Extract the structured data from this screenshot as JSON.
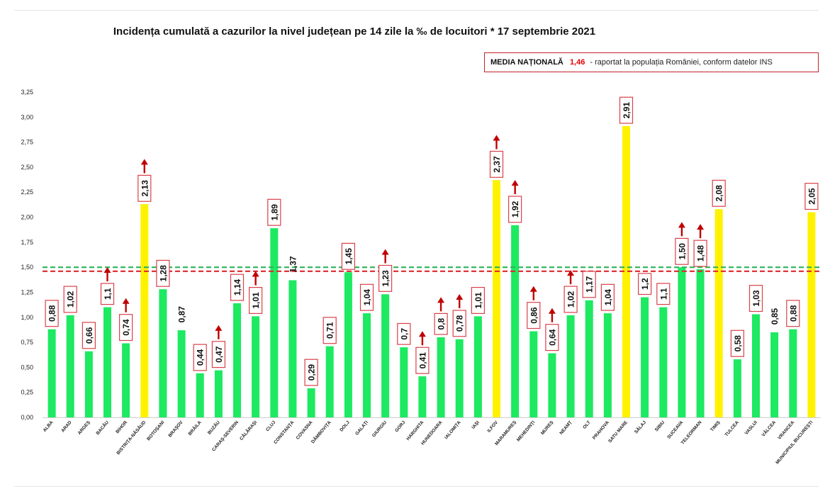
{
  "title": "Incidența cumulată a cazurilor la nivel județean pe 14 zile la ‰ de locuitori * 17 septembrie 2021",
  "media_box": {
    "label": "MEDIA NAȚIONALĂ",
    "value": "1,46",
    "note": "- raportat la populația României, conform datelor INS"
  },
  "colors": {
    "bar_green": "#1de961",
    "bar_yellow": "#fff200",
    "label_border": "#d9414a",
    "arrow": "#c00000",
    "line_red": "#e0282d",
    "line_green": "#2fb35a"
  },
  "chart_data": {
    "type": "bar",
    "categories": [
      "ALBA",
      "ARAD",
      "ARGEȘ",
      "BACĂU",
      "BIHOR",
      "BISTRIȚA-NĂSĂUD",
      "BOTOȘANI",
      "BRAȘOV",
      "BRĂILA",
      "BUZĂU",
      "CARAȘ-SEVERIN",
      "CĂLĂRAȘI",
      "CLUJ",
      "CONSTANȚA",
      "COVASNA",
      "DÂMBOVIȚA",
      "DOLJ",
      "GALAȚI",
      "GIURGIU",
      "GORJ",
      "HARGHITA",
      "HUNEDOARA",
      "IALOMIȚA",
      "IAȘI",
      "ILFOV",
      "MARAMUREȘ",
      "MEHEDINȚI",
      "MUREȘ",
      "NEAMȚ",
      "OLT",
      "PRAHOVA",
      "SATU MARE",
      "SĂLAJ",
      "SIBIU",
      "SUCEAVA",
      "TELEORMAN",
      "TIMIȘ",
      "TULCEA",
      "VASLUI",
      "VÂLCEA",
      "VRANCEA",
      "MUNICIPIUL BUCUREȘTI"
    ],
    "values": [
      0.88,
      1.02,
      0.66,
      1.1,
      0.74,
      2.13,
      1.28,
      0.87,
      0.44,
      0.47,
      1.14,
      1.01,
      1.89,
      1.37,
      0.29,
      0.71,
      1.45,
      1.04,
      1.23,
      0.7,
      0.41,
      0.8,
      0.78,
      1.01,
      2.37,
      1.92,
      0.86,
      0.64,
      1.02,
      1.17,
      1.04,
      2.91,
      1.2,
      1.1,
      1.5,
      1.48,
      2.08,
      0.58,
      1.03,
      0.85,
      0.88,
      2.05
    ],
    "value_labels": [
      "0,88",
      "1,02",
      "0,66",
      "1,1",
      "0,74",
      "2,13",
      "1,28",
      "0,87",
      "0,44",
      "0,47",
      "1,14",
      "1,01",
      "1,89",
      "1,37",
      "0,29",
      "0,71",
      "1,45",
      "1,04",
      "1,23",
      "0,7",
      "0,41",
      "0,8",
      "0,78",
      "1,01",
      "2,37",
      "1,92",
      "0,86",
      "0,64",
      "1,02",
      "1,17",
      "1,04",
      "2,91",
      "1,2",
      "1,1",
      "1,50",
      "1,48",
      "2,08",
      "0,58",
      "1,03",
      "0,85",
      "0,88",
      "2,05"
    ],
    "boxed": [
      true,
      true,
      true,
      true,
      true,
      true,
      true,
      false,
      true,
      true,
      true,
      true,
      true,
      false,
      true,
      true,
      true,
      true,
      true,
      true,
      true,
      true,
      true,
      true,
      true,
      true,
      true,
      true,
      true,
      true,
      true,
      true,
      true,
      true,
      true,
      true,
      true,
      true,
      true,
      false,
      true,
      true
    ],
    "highlight_yellow": [
      false,
      false,
      false,
      false,
      false,
      true,
      false,
      false,
      false,
      false,
      false,
      false,
      false,
      false,
      false,
      false,
      false,
      false,
      false,
      false,
      false,
      false,
      false,
      false,
      true,
      false,
      false,
      false,
      false,
      false,
      false,
      true,
      false,
      false,
      false,
      false,
      true,
      false,
      false,
      false,
      false,
      true
    ],
    "up_arrow": [
      false,
      false,
      false,
      true,
      true,
      true,
      false,
      false,
      false,
      true,
      false,
      true,
      false,
      false,
      false,
      false,
      false,
      false,
      true,
      false,
      true,
      true,
      true,
      false,
      true,
      true,
      true,
      true,
      true,
      false,
      false,
      false,
      false,
      false,
      true,
      true,
      false,
      false,
      false,
      false,
      false,
      false
    ],
    "ylim": [
      0,
      3.25
    ],
    "yticks": [
      "0,00",
      "0,25",
      "0,50",
      "0,75",
      "1,00",
      "1,25",
      "1,50",
      "1,75",
      "2,00",
      "2,25",
      "2,50",
      "2,75",
      "3,00",
      "3,25"
    ],
    "reference_lines": [
      {
        "name": "media națională",
        "value": 1.46,
        "color": "red",
        "style": "dashed"
      },
      {
        "value": 1.5,
        "color": "green",
        "style": "dashed"
      }
    ],
    "title": "Incidența cumulată a cazurilor la nivel județean pe 14 zile la ‰ de locuitori * 17 septembrie 2021",
    "xlabel": "",
    "ylabel": "",
    "grid": false
  }
}
